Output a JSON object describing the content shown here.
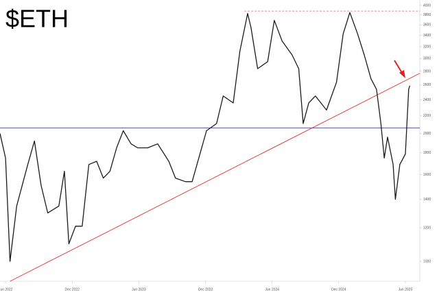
{
  "chart_data": {
    "type": "line",
    "title": "$ETH",
    "log_scale": true,
    "color": "#1a1a1a",
    "x": [
      4.5,
      5.0,
      5.4,
      6.0,
      7.0,
      7.6,
      8.2,
      8.8,
      9.8,
      10.3,
      10.7,
      11.3,
      11.9,
      12.5,
      13.2,
      13.8,
      14.4,
      15.0,
      15.6,
      16.3,
      16.9,
      17.8,
      18.7,
      19.7,
      20.3,
      21.2,
      21.8,
      22.4,
      23.1,
      24.0,
      24.6,
      25.5,
      26.1,
      26.8,
      27.1,
      27.7,
      28.6,
      29.2,
      29.9,
      30.8,
      31.4,
      31.8,
      32.3,
      32.9,
      33.9,
      34.8,
      35.4,
      36.0,
      36.7,
      37.3,
      37.9,
      38.4,
      38.8,
      39.1,
      39.4,
      39.9,
      40.1,
      40.5,
      41.0,
      41.3,
      41.4
    ],
    "values": [
      2000,
      1750,
      1000,
      1350,
      1690,
      1920,
      1510,
      1300,
      1350,
      1630,
      1100,
      1210,
      1210,
      1690,
      1720,
      1570,
      1630,
      1850,
      2030,
      1890,
      1850,
      1850,
      1890,
      1720,
      1570,
      1540,
      1540,
      1750,
      2030,
      2110,
      2450,
      2360,
      3120,
      3830,
      3550,
      2840,
      2950,
      3690,
      3300,
      3060,
      2840,
      2110,
      2360,
      2450,
      2270,
      2640,
      3430,
      3850,
      3430,
      3060,
      2690,
      2540,
      2110,
      1750,
      1960,
      1690,
      1400,
      1690,
      1790,
      2540,
      2590
    ],
    "xlim": [
      4.5,
      42.3
    ],
    "ylim": [
      898,
      4120
    ],
    "xticks": [
      {
        "value": 5,
        "label": "Jun 2022"
      },
      {
        "value": 11,
        "label": "Dec 2022"
      },
      {
        "value": 17,
        "label": "Jun 2023"
      },
      {
        "value": 23,
        "label": "Dec 2023"
      },
      {
        "value": 29,
        "label": "Jun 2024"
      },
      {
        "value": 35,
        "label": "Dec 2024"
      },
      {
        "value": 41,
        "label": "Jun 2025"
      }
    ],
    "yticks": [
      1000,
      1200,
      1400,
      1600,
      1800,
      2000,
      2200,
      2400,
      2600,
      2800,
      3000,
      3200,
      3400,
      3600,
      3800,
      4000
    ],
    "hlines": [
      {
        "value": 2060,
        "color": "#4a4a9a",
        "style": "solid",
        "xstart": 4.5
      },
      {
        "value": 3880,
        "color": "#e06060",
        "style": "dashed",
        "xstart": 26.5
      }
    ],
    "trendline": {
      "x": [
        5.4,
        42.3
      ],
      "values": [
        898,
        2770
      ],
      "color": "#e03030"
    }
  }
}
